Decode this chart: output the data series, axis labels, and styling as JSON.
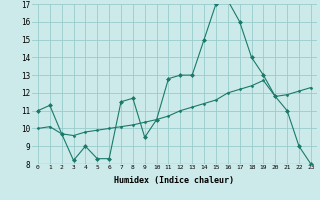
{
  "line1_x": [
    0,
    1,
    2,
    3,
    4,
    5,
    6,
    7,
    8,
    9,
    10,
    11,
    12,
    13,
    14,
    15,
    16,
    17,
    18,
    19,
    20,
    21,
    22,
    23
  ],
  "line1_y": [
    11.0,
    11.3,
    9.7,
    8.2,
    9.0,
    8.3,
    8.3,
    11.5,
    11.7,
    9.5,
    10.5,
    12.8,
    13.0,
    13.0,
    15.0,
    17.0,
    17.2,
    16.0,
    14.0,
    13.0,
    11.8,
    11.0,
    9.0,
    8.0
  ],
  "line2_x": [
    0,
    1,
    2,
    3,
    4,
    5,
    6,
    7,
    8,
    9,
    10,
    11,
    12,
    13,
    14,
    15,
    16,
    17,
    18,
    19,
    20,
    21,
    22,
    23
  ],
  "line2_y": [
    8.0,
    8.0,
    8.0,
    8.0,
    8.0,
    8.0,
    8.0,
    8.0,
    8.0,
    8.0,
    8.0,
    8.0,
    8.0,
    8.0,
    8.0,
    8.0,
    8.0,
    8.0,
    8.0,
    8.0,
    8.0,
    8.0,
    8.0,
    8.0
  ],
  "line3_x": [
    0,
    1,
    2,
    3,
    4,
    5,
    6,
    7,
    8,
    9,
    10,
    11,
    12,
    13,
    14,
    15,
    16,
    17,
    18,
    19,
    20,
    21,
    22,
    23
  ],
  "line3_y": [
    10.0,
    10.1,
    9.7,
    9.6,
    9.8,
    9.9,
    10.0,
    10.1,
    10.2,
    10.35,
    10.5,
    10.7,
    11.0,
    11.2,
    11.4,
    11.6,
    12.0,
    12.2,
    12.4,
    12.7,
    11.8,
    11.9,
    12.1,
    12.3
  ],
  "line_color": "#1a7a6a",
  "bg_color": "#cceaea",
  "grid_color": "#99cccc",
  "xlabel": "Humidex (Indice chaleur)",
  "ylim": [
    8,
    17
  ],
  "xlim": [
    -0.5,
    23.5
  ],
  "yticks": [
    8,
    9,
    10,
    11,
    12,
    13,
    14,
    15,
    16,
    17
  ],
  "xticks": [
    0,
    1,
    2,
    3,
    4,
    5,
    6,
    7,
    8,
    9,
    10,
    11,
    12,
    13,
    14,
    15,
    16,
    17,
    18,
    19,
    20,
    21,
    22,
    23
  ]
}
